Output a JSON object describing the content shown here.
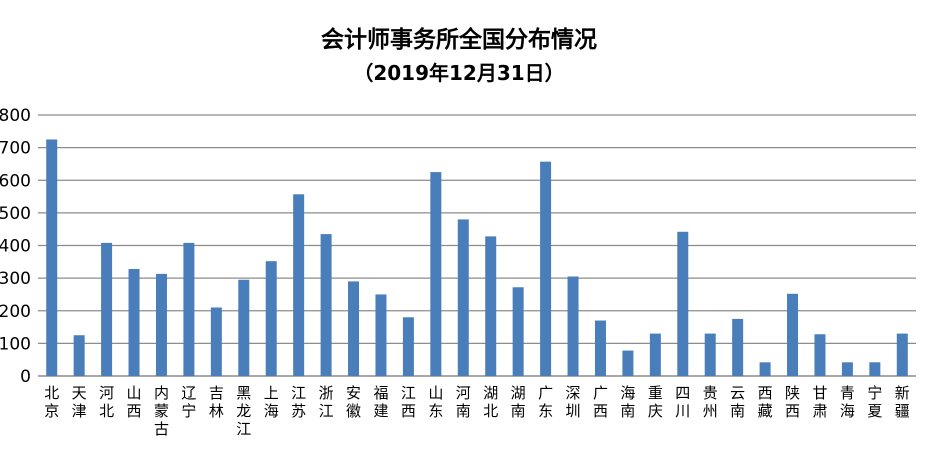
{
  "chart_data": {
    "type": "bar",
    "title": "会计师事务所全国分布情况",
    "subtitle": "（2019年12月31日）",
    "xlabel": "",
    "ylabel": "",
    "ylim": [
      0,
      800
    ],
    "yticks": [
      0,
      100,
      200,
      300,
      400,
      500,
      600,
      700,
      800
    ],
    "grid": true,
    "legend": "none",
    "bar_color": "#4a7ebb",
    "grid_color": "#8c8c8c",
    "categories": [
      "北京",
      "天津",
      "河北",
      "山西",
      "内蒙古",
      "辽宁",
      "吉林",
      "黑龙江",
      "上海",
      "江苏",
      "浙江",
      "安徽",
      "福建",
      "江西",
      "山东",
      "河南",
      "湖北",
      "湖南",
      "广东",
      "深圳",
      "广西",
      "海南",
      "重庆",
      "四川",
      "贵州",
      "云南",
      "西藏",
      "陕西",
      "甘肃",
      "青海",
      "宁夏",
      "新疆"
    ],
    "values": [
      725,
      125,
      408,
      328,
      313,
      408,
      210,
      295,
      352,
      557,
      435,
      290,
      250,
      180,
      625,
      480,
      428,
      272,
      657,
      305,
      170,
      78,
      130,
      442,
      130,
      175,
      42,
      252,
      128,
      42,
      42,
      130
    ]
  }
}
